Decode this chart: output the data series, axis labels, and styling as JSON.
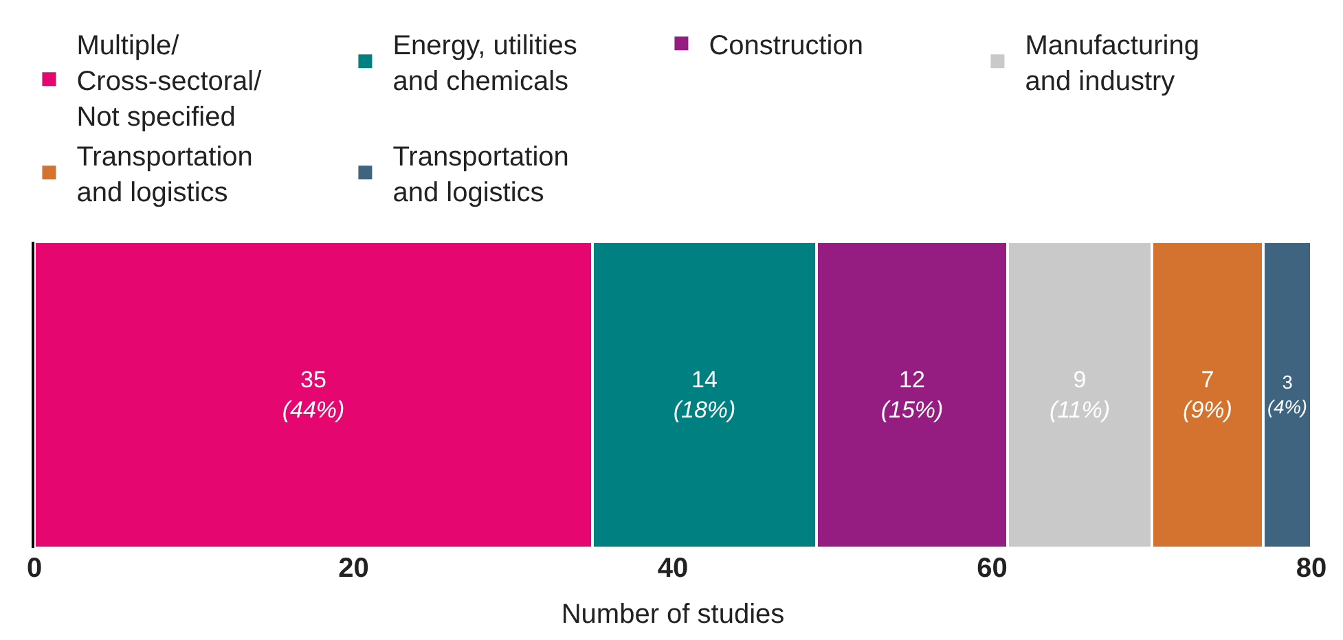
{
  "chart_data": {
    "type": "bar",
    "orientation": "horizontal",
    "stacked": true,
    "categories": [
      null
    ],
    "xlabel": "Number of studies",
    "xlim": [
      0,
      80
    ],
    "xticks": [
      0,
      20,
      40,
      60,
      80
    ],
    "legend": "top",
    "series": [
      {
        "name": "Multiple/\nCross-sectoral/\nNot specified",
        "color": "#e6066f",
        "values": [
          35
        ],
        "value_labels": [
          "35\n(44%)"
        ]
      },
      {
        "name": "Energy, utilities\nand chemicals",
        "color": "#008080",
        "values": [
          14
        ],
        "value_labels": [
          "14\n(18%)"
        ]
      },
      {
        "name": "Construction",
        "color": "#951d82",
        "values": [
          12
        ],
        "value_labels": [
          "12\n(15%)"
        ]
      },
      {
        "name": "Manufacturing\nand industry",
        "color": "#c9c9c9",
        "values": [
          9
        ],
        "value_labels": [
          "9\n(11%)"
        ]
      },
      {
        "name": "Transportation\nand logistics",
        "color": "#d4722f",
        "values": [
          7
        ],
        "value_labels": [
          "7\n(9%)"
        ]
      },
      {
        "name": "Transportation\nand logistics",
        "color": "#3f6480",
        "values": [
          3
        ],
        "value_labels": [
          "3\n(4%)"
        ]
      }
    ]
  }
}
